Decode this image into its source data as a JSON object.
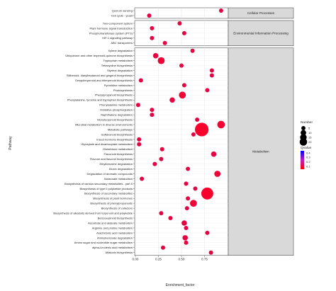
{
  "chart_data": {
    "type": "scatter",
    "title": "",
    "xlabel": "Enrichment_factor",
    "ylabel": "Pathway",
    "xlim": [
      0,
      1.0
    ],
    "xticks": [
      "0.00",
      "0.25",
      "0.50",
      "0.75"
    ],
    "xtick_values": [
      0,
      0.25,
      0.5,
      0.75
    ],
    "grid": true,
    "legend_position": "right",
    "legend": {
      "size_title": "Number",
      "size_entries": [
        "5",
        "10",
        "15",
        "20"
      ],
      "color_title": "Qvalue",
      "color_entries": [
        "0.4",
        "0.3",
        "0.2",
        "0.1"
      ],
      "color_low": "#ff0000",
      "color_high": "#0000ff"
    },
    "facets": [
      {
        "name": "Cellular Processes",
        "points": [
          {
            "pathway": "Quorum sensing",
            "x": 0.93,
            "count": 1,
            "q": 0.05
          },
          {
            "pathway": "Cell cycle - yeast",
            "x": 0.15,
            "count": 1,
            "q": 0.05
          }
        ]
      },
      {
        "name": "Environmental Information Processing",
        "points": [
          {
            "pathway": "Two-component system",
            "x": 0.48,
            "count": 1,
            "q": 0.05
          },
          {
            "pathway": "Plant hormone signal transduction",
            "x": 0.18,
            "count": 1,
            "q": 0.05
          },
          {
            "pathway": "Phosphotransferase system (PTS)",
            "x": 0.53,
            "count": 1,
            "q": 0.05
          },
          {
            "pathway": "HIF-1 signaling pathway",
            "x": 0.18,
            "count": 1,
            "q": 0.05
          },
          {
            "pathway": "ABC transporters",
            "x": 0.32,
            "count": 1,
            "q": 0.05
          }
        ]
      },
      {
        "name": "Metabolism",
        "points": [
          {
            "pathway": "Xylene degradation",
            "x": 0.62,
            "count": 1,
            "q": 0.05
          },
          {
            "pathway": "Ubiquinone and other terpenoid-quinone biosynthesis",
            "x": 0.22,
            "count": 2,
            "q": 0.05
          },
          {
            "pathway": "Tryptophan metabolism",
            "x": 0.28,
            "count": 4,
            "q": 0.03
          },
          {
            "pathway": "Tetracycline biosynthesis",
            "x": 0.5,
            "count": 1,
            "q": 0.05
          },
          {
            "pathway": "Styrene degradation",
            "x": 0.83,
            "count": 1,
            "q": 0.05
          },
          {
            "pathway": "Stilbenoid, diarylheptanoid and gingerol biosynthesis",
            "x": 0.83,
            "count": 1,
            "q": 0.05
          },
          {
            "pathway": "Sesquiterpenoid and triterpenoid biosynthesis",
            "x": 0.06,
            "count": 1,
            "q": 0.05
          },
          {
            "pathway": "Pyrimidine metabolism",
            "x": 0.53,
            "count": 1,
            "q": 0.05
          },
          {
            "pathway": "Photosynthesis",
            "x": 0.78,
            "count": 1,
            "q": 0.05
          },
          {
            "pathway": "Phenylpropanoid biosynthesis",
            "x": 0.51,
            "count": 4,
            "q": 0.03
          },
          {
            "pathway": "Phenylalanine, tyrosine and tryptophan biosynthesis",
            "x": 0.4,
            "count": 2,
            "q": 0.05
          },
          {
            "pathway": "Phenylalanine metabolism",
            "x": 0.03,
            "count": 1,
            "q": 0.05
          },
          {
            "pathway": "Oxidative phosphorylation",
            "x": 0.18,
            "count": 1,
            "q": 0.05
          },
          {
            "pathway": "Naphthalene degradation",
            "x": 0.18,
            "count": 1,
            "q": 0.05
          },
          {
            "pathway": "Monoterpenoid biosynthesis",
            "x": 0.67,
            "count": 1,
            "q": 0.05
          },
          {
            "pathway": "Microbial metabolism in diverse environments",
            "x": 0.93,
            "count": 5,
            "q": 0.02
          },
          {
            "pathway": "Metabolic pathways",
            "x": 0.72,
            "count": 20,
            "q": 0.01
          },
          {
            "pathway": "Isoflavonoid biosynthesis",
            "x": 0.63,
            "count": 1,
            "q": 0.05
          },
          {
            "pathway": "Insect hormone biosynthesis",
            "x": 0.04,
            "count": 1,
            "q": 0.05
          },
          {
            "pathway": "Glyoxylate and dicarboxylate metabolism",
            "x": 0.04,
            "count": 1,
            "q": 0.05
          },
          {
            "pathway": "Glutathione metabolism",
            "x": 0.29,
            "count": 1,
            "q": 0.05
          },
          {
            "pathway": "Flavonoid biosynthesis",
            "x": 0.85,
            "count": 2,
            "q": 0.05
          },
          {
            "pathway": "Flavone and flavonol biosynthesis",
            "x": 0.28,
            "count": 1,
            "q": 0.05
          },
          {
            "pathway": "Ethylbenzene degradation",
            "x": 0.21,
            "count": 1,
            "q": 0.05
          },
          {
            "pathway": "Dioxin degradation",
            "x": 0.57,
            "count": 1,
            "q": 0.05
          },
          {
            "pathway": "Degradation of aromatic compounds",
            "x": 0.89,
            "count": 3,
            "q": 0.03
          },
          {
            "pathway": "Butanoate metabolism",
            "x": 0.07,
            "count": 1,
            "q": 0.05
          },
          {
            "pathway": "Biosynthesis of various secondary metabolites - part II",
            "x": 0.55,
            "count": 1,
            "q": 0.05
          },
          {
            "pathway": "Biosynthesis of type II polyketide products",
            "x": 0.65,
            "count": 1,
            "q": 0.05
          },
          {
            "pathway": "Biosynthesis of secondary metabolites",
            "x": 0.78,
            "count": 15,
            "q": 0.01
          },
          {
            "pathway": "Biosynthesis of plant hormones",
            "x": 0.57,
            "count": 1,
            "q": 0.05
          },
          {
            "pathway": "Biosynthesis of phenylpropanoids",
            "x": 0.63,
            "count": 4,
            "q": 0.03
          },
          {
            "pathway": "Biosynthesis of cofactors",
            "x": 0.56,
            "count": 1,
            "q": 0.05
          },
          {
            "pathway": "Biosynthesis of alkaloids derived from terpenoid and polyketide",
            "x": 0.28,
            "count": 1,
            "q": 0.05
          },
          {
            "pathway": "Benzoxazinoid biosynthesis",
            "x": 0.38,
            "count": 1,
            "q": 0.05
          },
          {
            "pathway": "Ascorbate and aldarate metabolism",
            "x": 0.53,
            "count": 2,
            "q": 0.05
          },
          {
            "pathway": "Arginine and proline metabolism",
            "x": 0.55,
            "count": 1,
            "q": 0.05
          },
          {
            "pathway": "Arachidonic acid metabolism",
            "x": 0.78,
            "count": 1,
            "q": 0.05
          },
          {
            "pathway": "Aminobenzoate degradation",
            "x": 0.54,
            "count": 2,
            "q": 0.05
          },
          {
            "pathway": "Amino sugar and nucleotide sugar metabolism",
            "x": 0.55,
            "count": 1,
            "q": 0.05
          },
          {
            "pathway": "alpha-Linolenic acid metabolism",
            "x": 0.3,
            "count": 1,
            "q": 0.05
          },
          {
            "pathway": "Aflatoxin biosynthesis",
            "x": 0.82,
            "count": 1,
            "q": 0.05
          }
        ]
      }
    ]
  }
}
